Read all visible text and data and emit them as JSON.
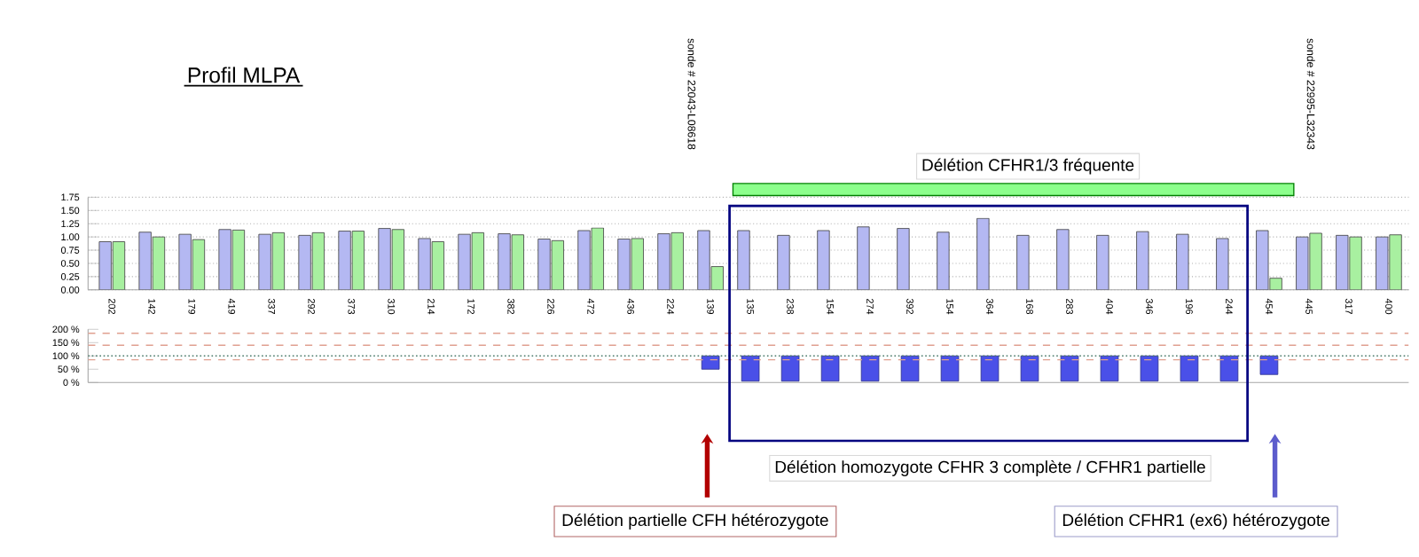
{
  "chart_data": [
    {
      "type": "bar",
      "title": "Profil MLPA",
      "categories": [
        "202",
        "142",
        "179",
        "419",
        "337",
        "292",
        "373",
        "310",
        "214",
        "172",
        "382",
        "226",
        "472",
        "436",
        "224",
        "139",
        "135",
        "238",
        "154",
        "274",
        "392",
        "154",
        "364",
        "168",
        "283",
        "404",
        "346",
        "196",
        "244",
        "454",
        "445",
        "317",
        "400"
      ],
      "series": [
        {
          "color": "#b4b8f2",
          "values": [
            0.91,
            1.09,
            1.05,
            1.14,
            1.05,
            1.03,
            1.11,
            1.16,
            0.97,
            1.05,
            1.06,
            0.96,
            1.12,
            0.96,
            1.06,
            1.12,
            1.12,
            1.03,
            1.12,
            1.19,
            1.16,
            1.09,
            1.35,
            1.03,
            1.14,
            1.03,
            1.1,
            1.05,
            0.97,
            1.12,
            1.0,
            1.03,
            1.0
          ]
        },
        {
          "color": "#a8f0a0",
          "values": [
            0.91,
            1.0,
            0.95,
            1.13,
            1.08,
            1.08,
            1.11,
            1.14,
            0.91,
            1.08,
            1.04,
            0.93,
            1.17,
            0.97,
            1.08,
            0.44,
            null,
            null,
            null,
            null,
            null,
            null,
            null,
            null,
            null,
            null,
            null,
            null,
            null,
            0.22,
            1.07,
            1.0,
            1.04
          ]
        }
      ],
      "ylim": [
        0,
        1.75
      ],
      "yticks": [
        {
          "value": 0,
          "label": "0.00"
        },
        {
          "value": 0.25,
          "label": "0.25"
        },
        {
          "value": 0.5,
          "label": "0.50"
        },
        {
          "value": 0.75,
          "label": "0.75"
        },
        {
          "value": 1,
          "label": "1.00"
        },
        {
          "value": 1.25,
          "label": "1.25"
        },
        {
          "value": 1.5,
          "label": "1.50"
        },
        {
          "value": 1.75,
          "label": "1.75"
        }
      ],
      "grid": "y",
      "annotations": [
        "sonde # 22043-L08618",
        "sonde # 22995-L32343",
        "Délétion CFHR1/3 fréquente",
        "Délétion homozygote CFHR 3 complète / CFHR1 partielle",
        "Délétion partielle CFH hétérozygote",
        "Délétion CFHR1 (ex6) hétérozygote"
      ]
    },
    {
      "type": "bar",
      "categories": [
        null,
        null,
        null,
        null,
        null,
        null,
        null,
        null,
        null,
        null,
        null,
        null,
        null,
        null,
        null,
        null,
        null,
        null,
        null,
        null,
        null,
        null,
        null,
        null,
        null,
        null,
        null,
        null,
        null,
        null,
        null,
        null,
        null
      ],
      "values": [
        null,
        null,
        null,
        null,
        null,
        null,
        null,
        null,
        null,
        null,
        null,
        null,
        null,
        null,
        null,
        -50,
        -95,
        -95,
        -95,
        -95,
        -95,
        -95,
        -95,
        -95,
        -95,
        -95,
        -95,
        -95,
        -95,
        -70,
        null,
        null,
        null
      ],
      "base": [
        null,
        null,
        null,
        null,
        null,
        null,
        null,
        null,
        null,
        null,
        null,
        null,
        null,
        null,
        null,
        100,
        100,
        100,
        100,
        100,
        100,
        100,
        100,
        100,
        100,
        100,
        100,
        100,
        100,
        100,
        null,
        null,
        null
      ],
      "color": "#4a50e8",
      "ylim": [
        0,
        200
      ],
      "yticks": [
        {
          "value": 0,
          "label": "0 %"
        },
        {
          "value": 50,
          "label": "50 %"
        },
        {
          "value": 100,
          "label": "100 %"
        },
        {
          "value": 150,
          "label": "150 %"
        },
        {
          "value": 200,
          "label": "200 %"
        }
      ],
      "tick_labels": "y",
      "ref_lines": [
        {
          "axis": "y",
          "value": 185,
          "color": "#e0a090",
          "line_style": "dashed"
        },
        {
          "axis": "y",
          "value": 140,
          "color": "#e0a090",
          "line_style": "dashed"
        },
        {
          "axis": "y",
          "value": 85,
          "color": "#e0a090",
          "line_style": "dashed"
        },
        {
          "axis": "y",
          "value": 100,
          "color": "#4a7a6a",
          "line_style": "dotted"
        }
      ]
    }
  ]
}
